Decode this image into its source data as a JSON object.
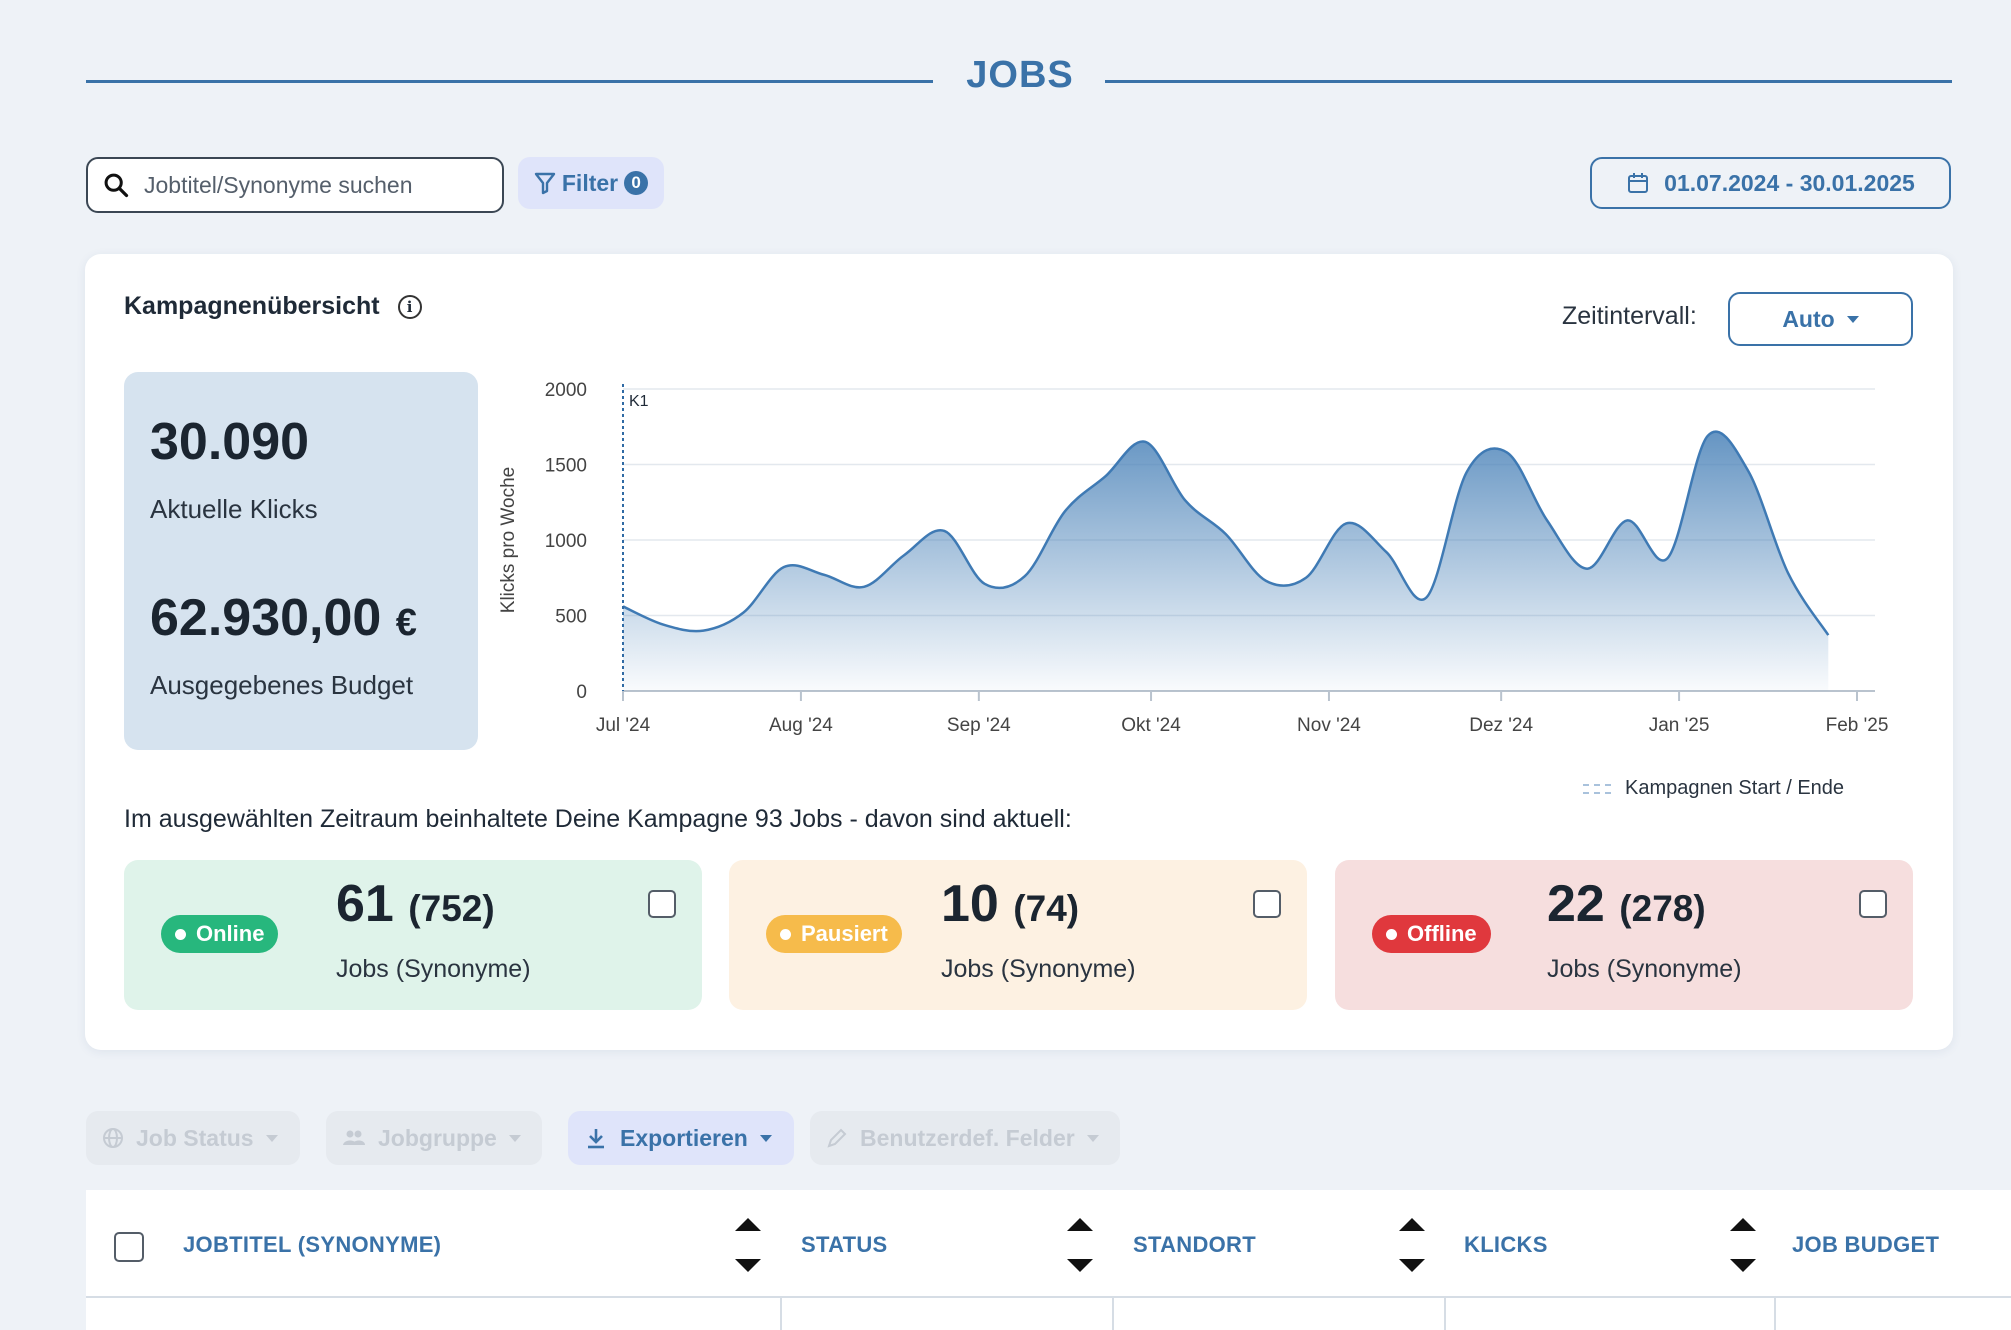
{
  "header": {
    "title": "JOBS"
  },
  "search": {
    "placeholder": "Jobtitel/Synonyme suchen"
  },
  "filter": {
    "label": "Filter",
    "count": "0"
  },
  "date_range": {
    "label": "01.07.2024 - 30.01.2025"
  },
  "overview": {
    "title": "Kampagnenübersicht",
    "interval_label": "Zeitintervall:",
    "interval_value": "Auto",
    "clicks_value": "30.090",
    "clicks_label": "Aktuelle Klicks",
    "budget_value": "62.930,00",
    "budget_currency": "€",
    "budget_label": "Ausgegebenes Budget",
    "summary": "Im ausgewählten Zeitraum beinhaltete Deine Kampagne 93 Jobs - davon sind aktuell:",
    "legend_label": "Kampagnen Start / Ende"
  },
  "status_cards": [
    {
      "status": "Online",
      "count": "61",
      "synonyms": "(752)",
      "label": "Jobs (Synonyme)",
      "bg": "#dff3ea",
      "pill": "#27b77d"
    },
    {
      "status": "Pausiert",
      "count": "10",
      "synonyms": "(74)",
      "label": "Jobs (Synonyme)",
      "bg": "#fdf1e2",
      "pill": "#f6bb4b"
    },
    {
      "status": "Offline",
      "count": "22",
      "synonyms": "(278)",
      "label": "Jobs (Synonyme)",
      "bg": "#f6dede",
      "pill": "#e0383d"
    }
  ],
  "toolbar": {
    "job_status": "Job Status",
    "jobgruppe": "Jobgruppe",
    "export": "Exportieren",
    "custom_fields": "Benutzerdef. Felder"
  },
  "table": {
    "headers": [
      "JOBTITEL (SYNONYME)",
      "STATUS",
      "STANDORT",
      "KLICKS",
      "JOB BUDGET"
    ]
  },
  "colors": {
    "accent": "#3a72a8",
    "line": "#4a82b8"
  },
  "chart_data": {
    "type": "area",
    "ylabel": "Klicks pro Woche",
    "xlabel": "",
    "ylim": [
      0,
      2000
    ],
    "yticks": [
      0,
      500,
      1000,
      1500,
      2000
    ],
    "xtick_labels": [
      "Jul '24",
      "Aug '24",
      "Sep '24",
      "Okt '24",
      "Nov '24",
      "Dez '24",
      "Jan '25",
      "Feb '25"
    ],
    "marker_label": "K1",
    "grid": true,
    "x": [
      "2024-07-01",
      "2024-07-08",
      "2024-07-15",
      "2024-07-22",
      "2024-07-29",
      "2024-08-05",
      "2024-08-12",
      "2024-08-19",
      "2024-08-26",
      "2024-09-02",
      "2024-09-09",
      "2024-09-16",
      "2024-09-23",
      "2024-09-30",
      "2024-10-07",
      "2024-10-14",
      "2024-10-21",
      "2024-10-28",
      "2024-11-04",
      "2024-11-11",
      "2024-11-18",
      "2024-11-25",
      "2024-12-02",
      "2024-12-09",
      "2024-12-16",
      "2024-12-23",
      "2024-12-30",
      "2025-01-06",
      "2025-01-13",
      "2025-01-20",
      "2025-01-27"
    ],
    "values": [
      560,
      440,
      400,
      520,
      820,
      770,
      690,
      900,
      1060,
      710,
      760,
      1190,
      1420,
      1650,
      1260,
      1040,
      730,
      750,
      1110,
      920,
      620,
      1450,
      1580,
      1130,
      810,
      1130,
      880,
      1690,
      1460,
      780,
      370
    ]
  }
}
